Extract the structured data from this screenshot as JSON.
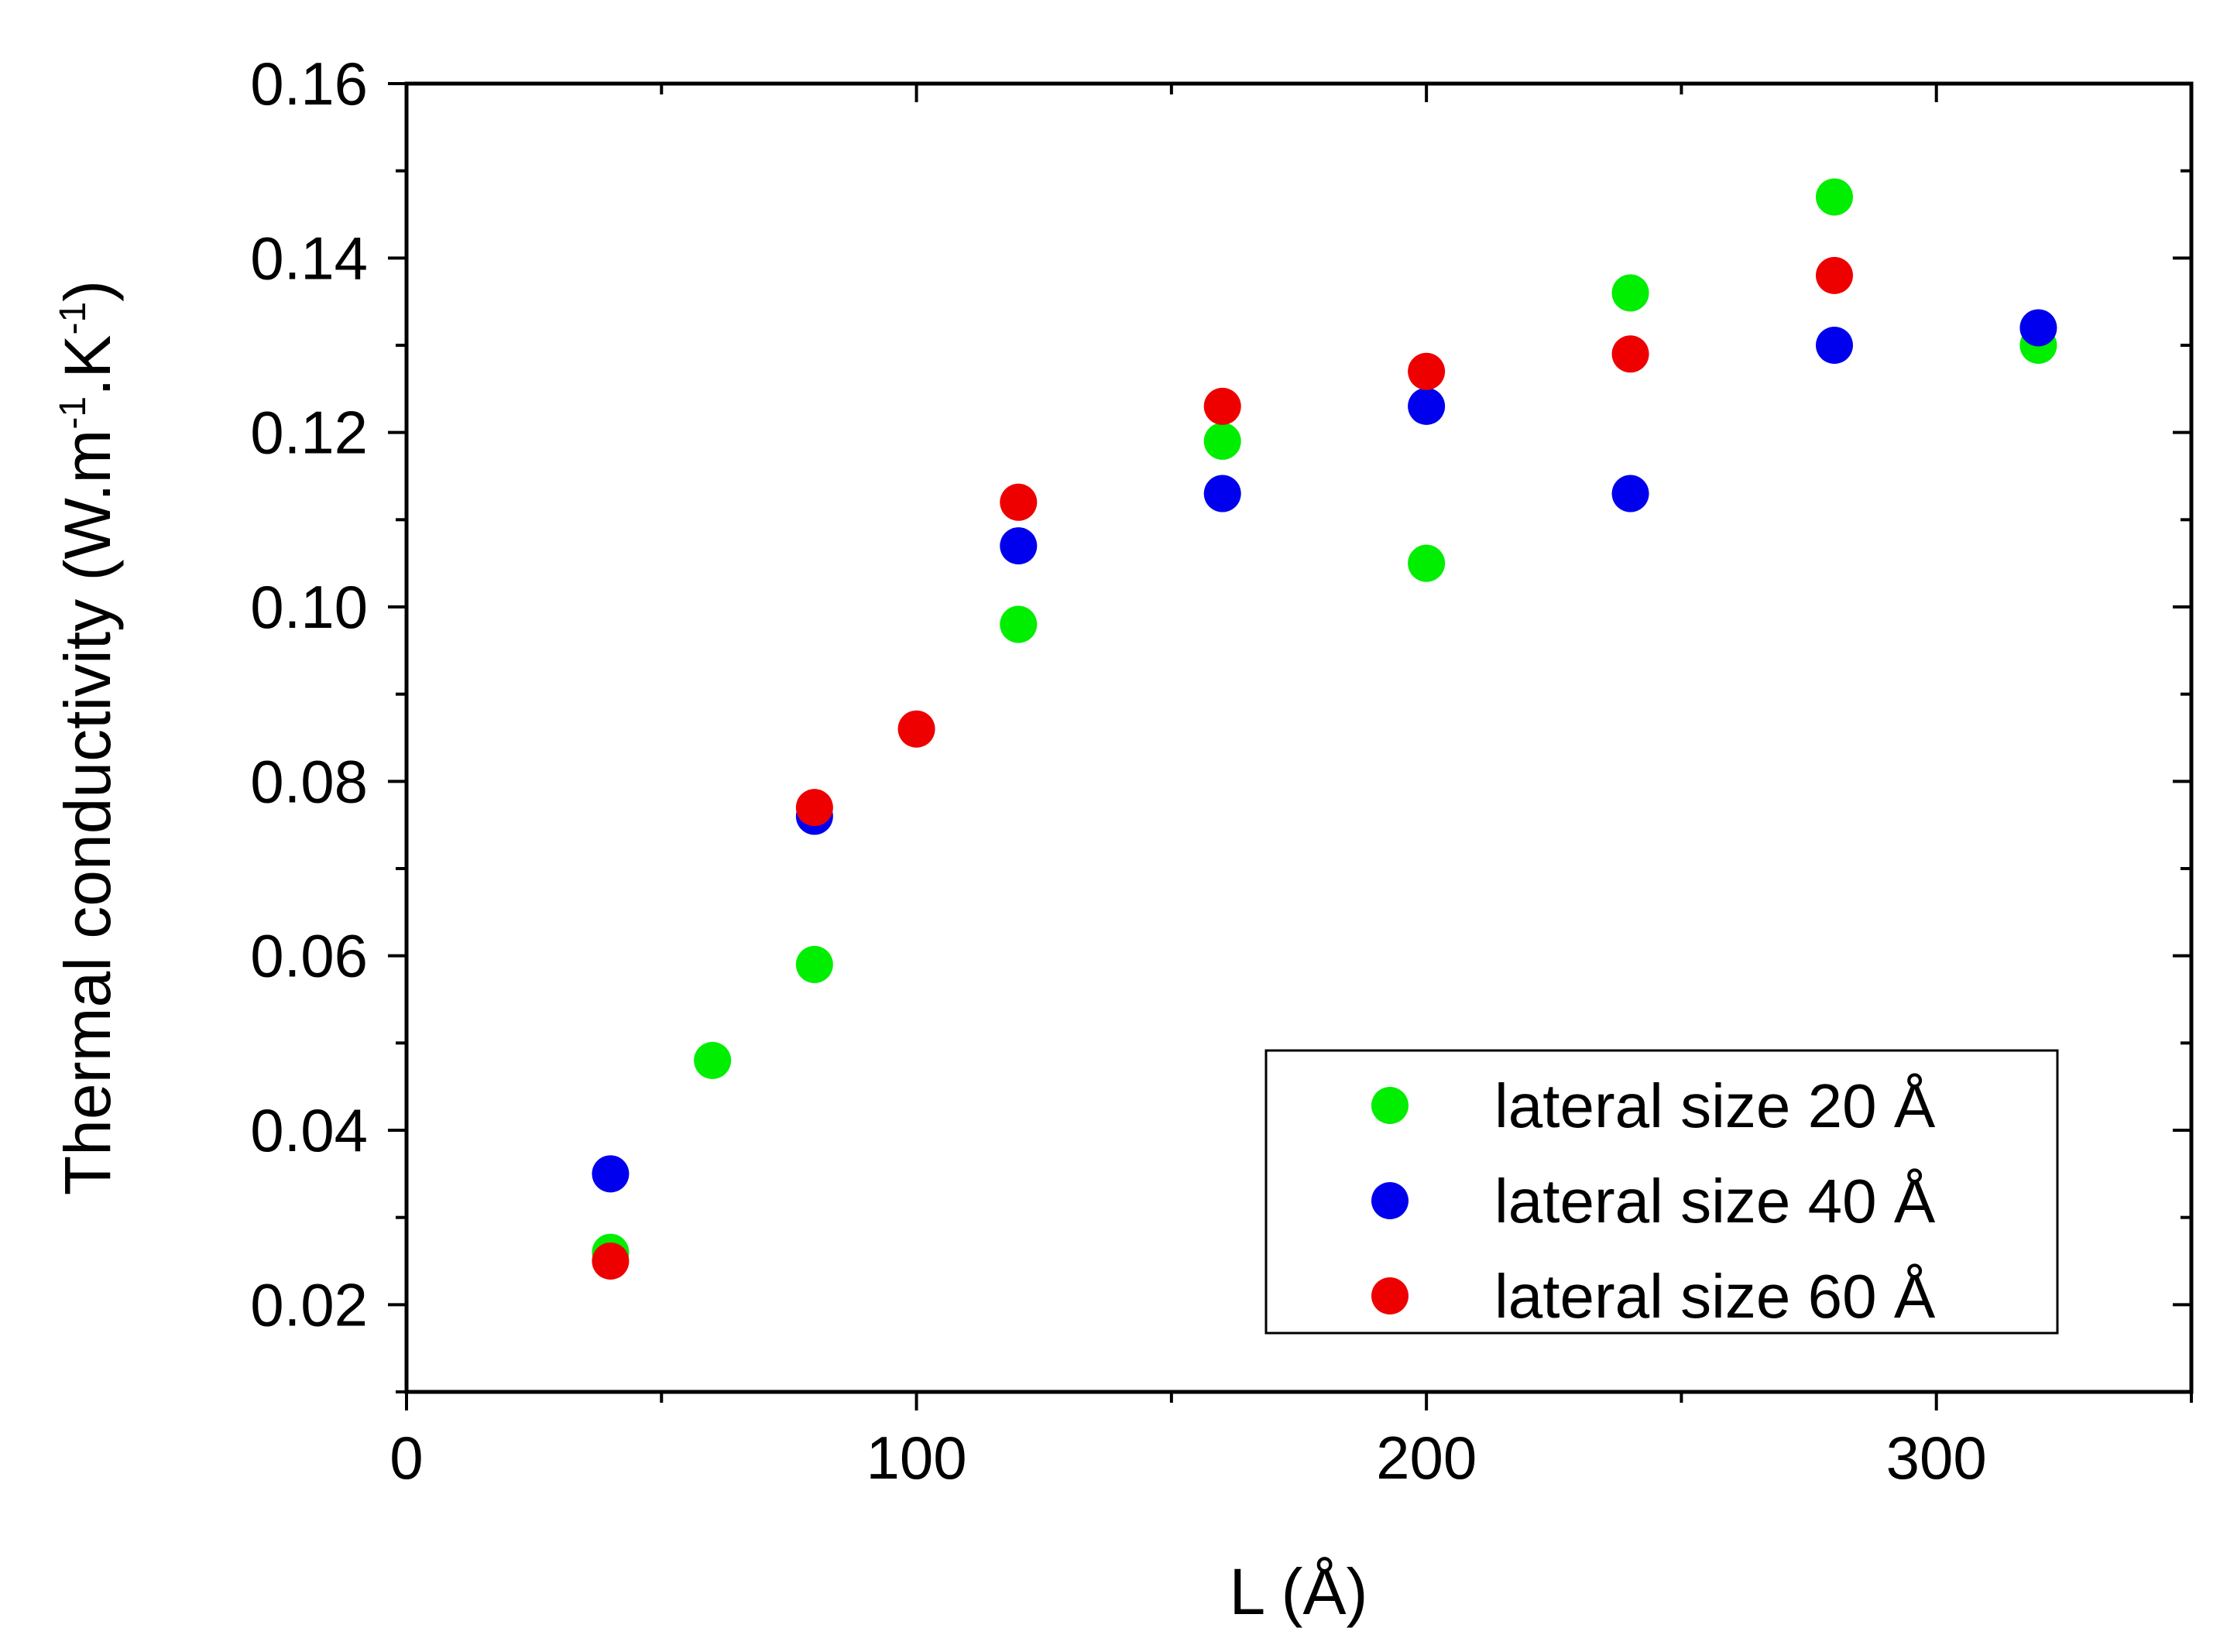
{
  "chart_data": {
    "type": "scatter",
    "title": "",
    "xlabel": "L (Å)",
    "ylabel": {
      "main": "Thermal conductivity (W.m",
      "exp1": "-1",
      "mid": ".K",
      "exp2": "-1",
      "end": ")"
    },
    "xlim": [
      0,
      350
    ],
    "ylim": [
      0.01,
      0.16
    ],
    "x_ticks": [
      0,
      100,
      200,
      300
    ],
    "x_tick_labels": [
      "0",
      "100",
      "200",
      "300"
    ],
    "y_ticks": [
      0.02,
      0.04,
      0.06,
      0.08,
      0.1,
      0.12,
      0.14,
      0.16
    ],
    "y_tick_labels": [
      "0.02",
      "0.04",
      "0.06",
      "0.08",
      "0.10",
      "0.12",
      "0.14",
      "0.16"
    ],
    "legend_position": "bottom-right",
    "grid": false,
    "series": [
      {
        "name": "lateral size 20 Å",
        "color": "#00ee00",
        "points": [
          {
            "x": 40,
            "y": 0.026
          },
          {
            "x": 60,
            "y": 0.048
          },
          {
            "x": 80,
            "y": 0.059
          },
          {
            "x": 120,
            "y": 0.098
          },
          {
            "x": 160,
            "y": 0.119
          },
          {
            "x": 200,
            "y": 0.105
          },
          {
            "x": 240,
            "y": 0.136
          },
          {
            "x": 280,
            "y": 0.147
          },
          {
            "x": 320,
            "y": 0.13
          }
        ]
      },
      {
        "name": "lateral size 40 Å",
        "color": "#0000ee",
        "points": [
          {
            "x": 40,
            "y": 0.035
          },
          {
            "x": 80,
            "y": 0.076
          },
          {
            "x": 120,
            "y": 0.107
          },
          {
            "x": 160,
            "y": 0.113
          },
          {
            "x": 200,
            "y": 0.123
          },
          {
            "x": 240,
            "y": 0.113
          },
          {
            "x": 280,
            "y": 0.13
          },
          {
            "x": 320,
            "y": 0.132
          }
        ]
      },
      {
        "name": "lateral size 60 Å",
        "color": "#ee0000",
        "points": [
          {
            "x": 40,
            "y": 0.025
          },
          {
            "x": 80,
            "y": 0.077
          },
          {
            "x": 100,
            "y": 0.086
          },
          {
            "x": 120,
            "y": 0.112
          },
          {
            "x": 160,
            "y": 0.123
          },
          {
            "x": 200,
            "y": 0.127
          },
          {
            "x": 240,
            "y": 0.129
          },
          {
            "x": 280,
            "y": 0.138
          }
        ]
      }
    ]
  }
}
